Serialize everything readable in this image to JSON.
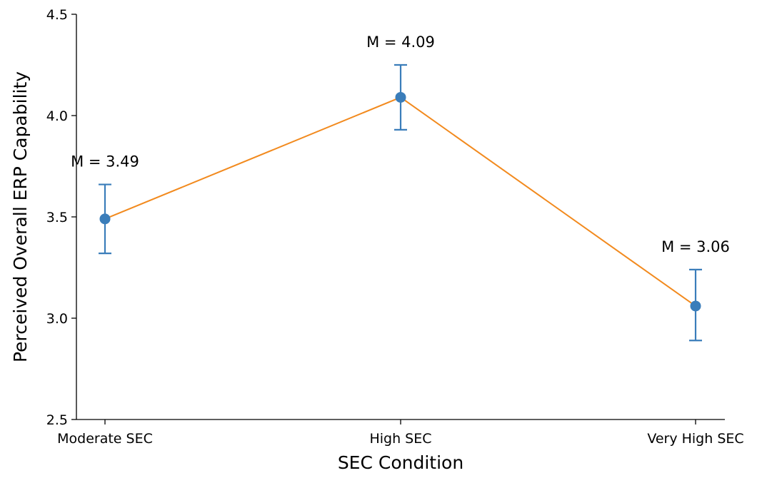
{
  "chart_data": {
    "type": "line",
    "title": "",
    "xlabel": "SEC Condition",
    "ylabel": "Perceived Overall ERP Capability",
    "categories": [
      "Moderate SEC",
      "High SEC",
      "Very High SEC"
    ],
    "ylim": [
      2.5,
      4.5
    ],
    "yticks": [
      "2.5",
      "3.0",
      "3.5",
      "4.0",
      "4.5"
    ],
    "series": [
      {
        "values": [
          3.49,
          4.09,
          3.06
        ],
        "error_low": [
          3.32,
          3.93,
          2.89
        ],
        "error_high": [
          3.66,
          4.25,
          3.24
        ],
        "labels": [
          "M = 3.49",
          "M = 4.09",
          "M = 3.06"
        ],
        "line_color": "#f28a1e",
        "marker_color": "#3a7dba",
        "errorbar_color": "#3a7dba"
      }
    ],
    "grid": false,
    "legend": "none"
  }
}
